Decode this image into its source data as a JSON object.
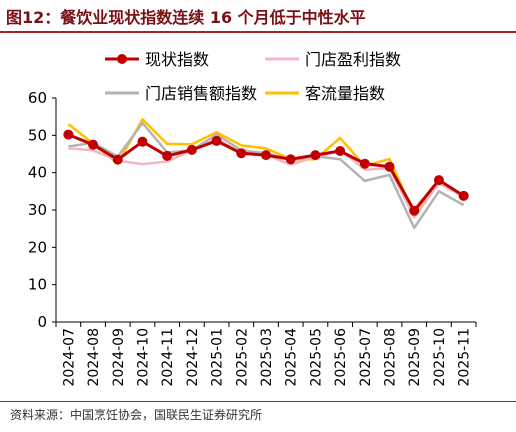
{
  "title": "图12：餐饮业现状指数连续 16 个月低于中性水平",
  "source": "资料来源：中国烹饪协会，国联民生证券研究所",
  "chart_data": {
    "type": "line",
    "categories": [
      "2024-07",
      "2024-08",
      "2024-09",
      "2024-10",
      "2024-11",
      "2024-12",
      "2025-01",
      "2025-02",
      "2025-03",
      "2025-04",
      "2025-05",
      "2025-06",
      "2025-07",
      "2025-08",
      "2025-09",
      "2025-10",
      "2025-11"
    ],
    "ylim": [
      0,
      60
    ],
    "yticks": [
      0,
      10,
      20,
      30,
      40,
      50,
      60
    ],
    "legend_position": "top",
    "grid": false,
    "series": [
      {
        "name": "现状指数",
        "color": "#c00000",
        "markers": true,
        "values": [
          50.2,
          47.5,
          43.5,
          48.3,
          44.5,
          46.1,
          48.5,
          45.2,
          44.7,
          43.6,
          44.7,
          45.8,
          42.4,
          41.6,
          29.8,
          38.0,
          33.8
        ]
      },
      {
        "name": "门店盈利指数",
        "color": "#f4b6c2",
        "markers": false,
        "values": [
          46.5,
          46.0,
          43.2,
          42.3,
          43.0,
          46.0,
          49.0,
          45.3,
          44.8,
          42.1,
          44.2,
          46.1,
          40.8,
          41.2,
          28.0,
          37.2,
          33.6
        ]
      },
      {
        "name": "门店销售额指数",
        "color": "#b3b3b3",
        "markers": false,
        "values": [
          47.0,
          48.0,
          44.3,
          53.3,
          45.4,
          46.0,
          50.2,
          46.0,
          45.2,
          43.4,
          44.4,
          43.6,
          37.8,
          39.4,
          25.2,
          35.0,
          31.3
        ]
      },
      {
        "name": "客流量指数",
        "color": "#ffc000",
        "markers": false,
        "values": [
          53.0,
          47.8,
          42.4,
          54.3,
          47.7,
          47.6,
          50.8,
          47.3,
          46.5,
          43.6,
          43.6,
          49.3,
          41.8,
          43.7,
          28.8,
          37.1,
          33.7
        ]
      }
    ]
  }
}
